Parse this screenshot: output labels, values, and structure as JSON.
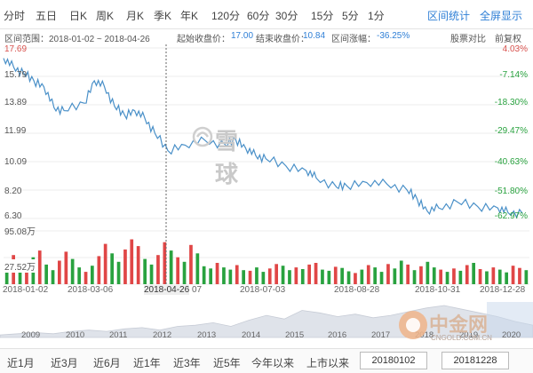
{
  "period_tabs": [
    "分时",
    "五日",
    "日K",
    "周K",
    "月K",
    "季K",
    "年K",
    "120分",
    "60分",
    "30分",
    "15分",
    "5分",
    "1分"
  ],
  "right_tabs": {
    "range_stats": "区间统计",
    "fullscreen": "全屏显示"
  },
  "info": {
    "range": "区间范围：2018-01-02 ~ 2018-04-26",
    "start_label": "起始收盘价：",
    "start_value": "17.00",
    "end_label": "结束收盘价：",
    "end_value": "10.84",
    "change_label": "区间涨幅：",
    "change_value": "-36.25%",
    "compare": "股票对比",
    "adjust": "前复权"
  },
  "price_axis": [
    "17.69",
    "15.79",
    "13.89",
    "11.99",
    "10.09",
    "8.20",
    "6.30"
  ],
  "pct_axis": [
    "4.03%",
    "-7.14%",
    "-18.30%",
    "-29.47%",
    "-40.63%",
    "-51.80%",
    "-62.97%"
  ],
  "volume_axis": {
    "max": "95.08万",
    "mid": "27.52万"
  },
  "x_labels": [
    "2018-01-02",
    "2018-03-06",
    "2018-04-26",
    "07",
    "2018-07-03",
    "2018-08-28",
    "2018-10-31",
    "2018-12-28"
  ],
  "overview_years": [
    "2009",
    "2010",
    "2011",
    "2012",
    "2013",
    "2014",
    "2015",
    "2016",
    "2017",
    "2018",
    "2019",
    "2020"
  ],
  "bottom_tabs": [
    "近1月",
    "近3月",
    "近6月",
    "近1年",
    "近3年",
    "近5年",
    "今年以来",
    "上市以来"
  ],
  "date_start": "20180102",
  "date_end": "20181228",
  "watermark": "雪球",
  "site_logo": {
    "name": "中金网",
    "url": "CNGOLD.COM.CN"
  },
  "colors": {
    "line": "#4a90c8",
    "up": "#e04646",
    "down": "#29a23f",
    "accent": "#2f7fd6"
  },
  "chart_data": {
    "type": "line",
    "title": "",
    "price_range": [
      6.3,
      17.69
    ],
    "price": [
      [
        "2018-01-02",
        17.0
      ],
      [
        "2018-01-09",
        16.4
      ],
      [
        "2018-01-16",
        16.0
      ],
      [
        "2018-01-23",
        15.5
      ],
      [
        "2018-01-30",
        15.1
      ],
      [
        "2018-02-06",
        13.7
      ],
      [
        "2018-02-13",
        13.5
      ],
      [
        "2018-02-27",
        14.0
      ],
      [
        "2018-03-06",
        15.5
      ],
      [
        "2018-03-13",
        15.1
      ],
      [
        "2018-03-20",
        13.8
      ],
      [
        "2018-03-27",
        13.2
      ],
      [
        "2018-04-03",
        13.5
      ],
      [
        "2018-04-10",
        13.0
      ],
      [
        "2018-04-17",
        12.0
      ],
      [
        "2018-04-26",
        10.84
      ],
      [
        "2018-05-08",
        11.2
      ],
      [
        "2018-05-22",
        11.5
      ],
      [
        "2018-06-05",
        11.2
      ],
      [
        "2018-06-12",
        11.6
      ],
      [
        "2018-06-19",
        11.0
      ],
      [
        "2018-06-26",
        10.5
      ],
      [
        "2018-07-03",
        10.3
      ],
      [
        "2018-07-17",
        9.8
      ],
      [
        "2018-07-31",
        9.5
      ],
      [
        "2018-08-07",
        9.0
      ],
      [
        "2018-08-21",
        8.4
      ],
      [
        "2018-08-28",
        8.5
      ],
      [
        "2018-09-11",
        8.7
      ],
      [
        "2018-09-25",
        8.6
      ],
      [
        "2018-10-09",
        8.2
      ],
      [
        "2018-10-16",
        7.6
      ],
      [
        "2018-10-23",
        6.8
      ],
      [
        "2018-10-31",
        7.0
      ],
      [
        "2018-11-13",
        7.4
      ],
      [
        "2018-11-27",
        7.1
      ],
      [
        "2018-12-11",
        7.0
      ],
      [
        "2018-12-18",
        6.7
      ],
      [
        "2018-12-28",
        6.65
      ]
    ],
    "volume_range": [
      0,
      95.08
    ],
    "volume_unit": "万",
    "volume": [
      {
        "v": 40,
        "up": false
      },
      {
        "v": 52,
        "up": true
      },
      {
        "v": 30,
        "up": false
      },
      {
        "v": 28,
        "up": true
      },
      {
        "v": 48,
        "up": false
      },
      {
        "v": 60,
        "up": true
      },
      {
        "v": 35,
        "up": false
      },
      {
        "v": 25,
        "up": false
      },
      {
        "v": 42,
        "up": true
      },
      {
        "v": 58,
        "up": true
      },
      {
        "v": 45,
        "up": false
      },
      {
        "v": 30,
        "up": false
      },
      {
        "v": 22,
        "up": true
      },
      {
        "v": 33,
        "up": false
      },
      {
        "v": 50,
        "up": true
      },
      {
        "v": 72,
        "up": true
      },
      {
        "v": 55,
        "up": false
      },
      {
        "v": 40,
        "up": false
      },
      {
        "v": 62,
        "up": true
      },
      {
        "v": 80,
        "up": true
      },
      {
        "v": 68,
        "up": true
      },
      {
        "v": 45,
        "up": false
      },
      {
        "v": 35,
        "up": false
      },
      {
        "v": 52,
        "up": true
      },
      {
        "v": 75,
        "up": true
      },
      {
        "v": 60,
        "up": false
      },
      {
        "v": 48,
        "up": true
      },
      {
        "v": 40,
        "up": false
      },
      {
        "v": 70,
        "up": true
      },
      {
        "v": 55,
        "up": false
      },
      {
        "v": 32,
        "up": false
      },
      {
        "v": 28,
        "up": false
      },
      {
        "v": 38,
        "up": true
      },
      {
        "v": 30,
        "up": false
      },
      {
        "v": 26,
        "up": false
      },
      {
        "v": 34,
        "up": true
      },
      {
        "v": 25,
        "up": false
      },
      {
        "v": 24,
        "up": true
      },
      {
        "v": 30,
        "up": false
      },
      {
        "v": 22,
        "up": false
      },
      {
        "v": 28,
        "up": true
      },
      {
        "v": 36,
        "up": true
      },
      {
        "v": 33,
        "up": false
      },
      {
        "v": 25,
        "up": false
      },
      {
        "v": 30,
        "up": true
      },
      {
        "v": 27,
        "up": false
      },
      {
        "v": 35,
        "up": true
      },
      {
        "v": 38,
        "up": true
      },
      {
        "v": 26,
        "up": false
      },
      {
        "v": 24,
        "up": false
      },
      {
        "v": 31,
        "up": true
      },
      {
        "v": 29,
        "up": false
      },
      {
        "v": 23,
        "up": false
      },
      {
        "v": 20,
        "up": true
      },
      {
        "v": 26,
        "up": false
      },
      {
        "v": 34,
        "up": true
      },
      {
        "v": 30,
        "up": false
      },
      {
        "v": 22,
        "up": false
      },
      {
        "v": 36,
        "up": true
      },
      {
        "v": 28,
        "up": false
      },
      {
        "v": 42,
        "up": false
      },
      {
        "v": 35,
        "up": true
      },
      {
        "v": 25,
        "up": false
      },
      {
        "v": 32,
        "up": true
      },
      {
        "v": 40,
        "up": false
      },
      {
        "v": 30,
        "up": false
      },
      {
        "v": 26,
        "up": true
      },
      {
        "v": 22,
        "up": false
      },
      {
        "v": 28,
        "up": true
      },
      {
        "v": 24,
        "up": false
      },
      {
        "v": 34,
        "up": true
      },
      {
        "v": 38,
        "up": false
      },
      {
        "v": 27,
        "up": true
      },
      {
        "v": 23,
        "up": false
      },
      {
        "v": 30,
        "up": true
      },
      {
        "v": 26,
        "up": false
      },
      {
        "v": 21,
        "up": false
      },
      {
        "v": 33,
        "up": true
      },
      {
        "v": 29,
        "up": true
      },
      {
        "v": 25,
        "up": false
      }
    ],
    "overview": [
      2,
      3,
      4,
      3,
      5,
      6,
      5,
      7,
      8,
      6,
      9,
      10,
      12,
      9,
      14,
      18,
      15,
      22,
      20,
      17,
      19,
      16,
      18,
      21,
      24,
      26,
      23,
      20,
      17,
      13,
      10
    ]
  }
}
